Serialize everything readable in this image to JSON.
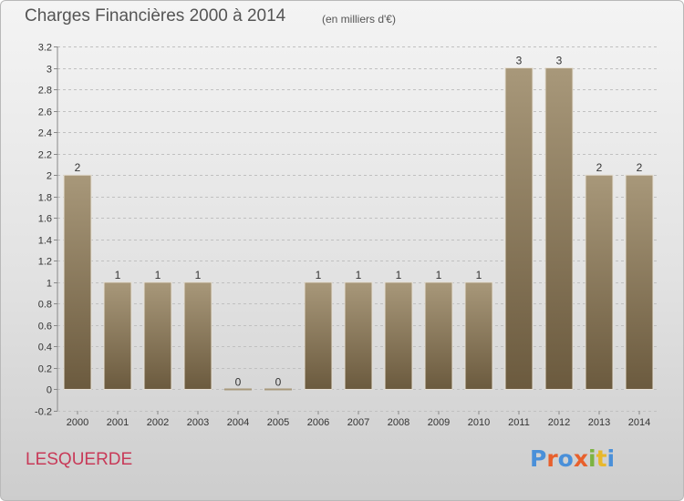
{
  "header": {
    "title": "Charges Financières 2000 à 2014",
    "subtitle": "(en milliers d'€)"
  },
  "footer": {
    "commune": "LESQUERDE",
    "logo_text": "Proxiti",
    "logo_colors": [
      "#4a90d9",
      "#e8602c",
      "#4a90d9",
      "#e8602c",
      "#7cb342",
      "#e8b82c",
      "#4a90d9"
    ]
  },
  "colors": {
    "bar_top": "#a8987a",
    "bar_bottom": "#6b5a3e",
    "bar_edge": "#e6e0d4",
    "axis_text": "#333333",
    "grid": "#c0c0c0"
  },
  "chart_data": {
    "type": "bar",
    "categories": [
      "2000",
      "2001",
      "2002",
      "2003",
      "2004",
      "2005",
      "2006",
      "2007",
      "2008",
      "2009",
      "2010",
      "2011",
      "2012",
      "2013",
      "2014"
    ],
    "values": [
      2,
      1,
      1,
      1,
      0,
      0,
      1,
      1,
      1,
      1,
      1,
      3,
      3,
      2,
      2
    ],
    "data_labels": [
      "2",
      "1",
      "1",
      "1",
      "0",
      "0",
      "1",
      "1",
      "1",
      "1",
      "1",
      "3",
      "3",
      "2",
      "2"
    ],
    "y_ticks": [
      -0.2,
      0,
      0.2,
      0.4,
      0.6,
      0.8,
      1,
      1.2,
      1.4,
      1.6,
      1.8,
      2,
      2.2,
      2.4,
      2.6,
      2.8,
      3,
      3.2
    ],
    "y_tick_labels": [
      "-0.2",
      "0",
      "0.2",
      "0.4",
      "0.6",
      "0.8",
      "1",
      "1.2",
      "1.4",
      "1.6",
      "1.8",
      "2",
      "2.2",
      "2.4",
      "2.6",
      "2.8",
      "3",
      "3.2"
    ],
    "ylim": [
      -0.2,
      3.2
    ],
    "grid": true,
    "title": "Charges Financières 2000 à 2014",
    "xlabel": "",
    "ylabel": ""
  }
}
